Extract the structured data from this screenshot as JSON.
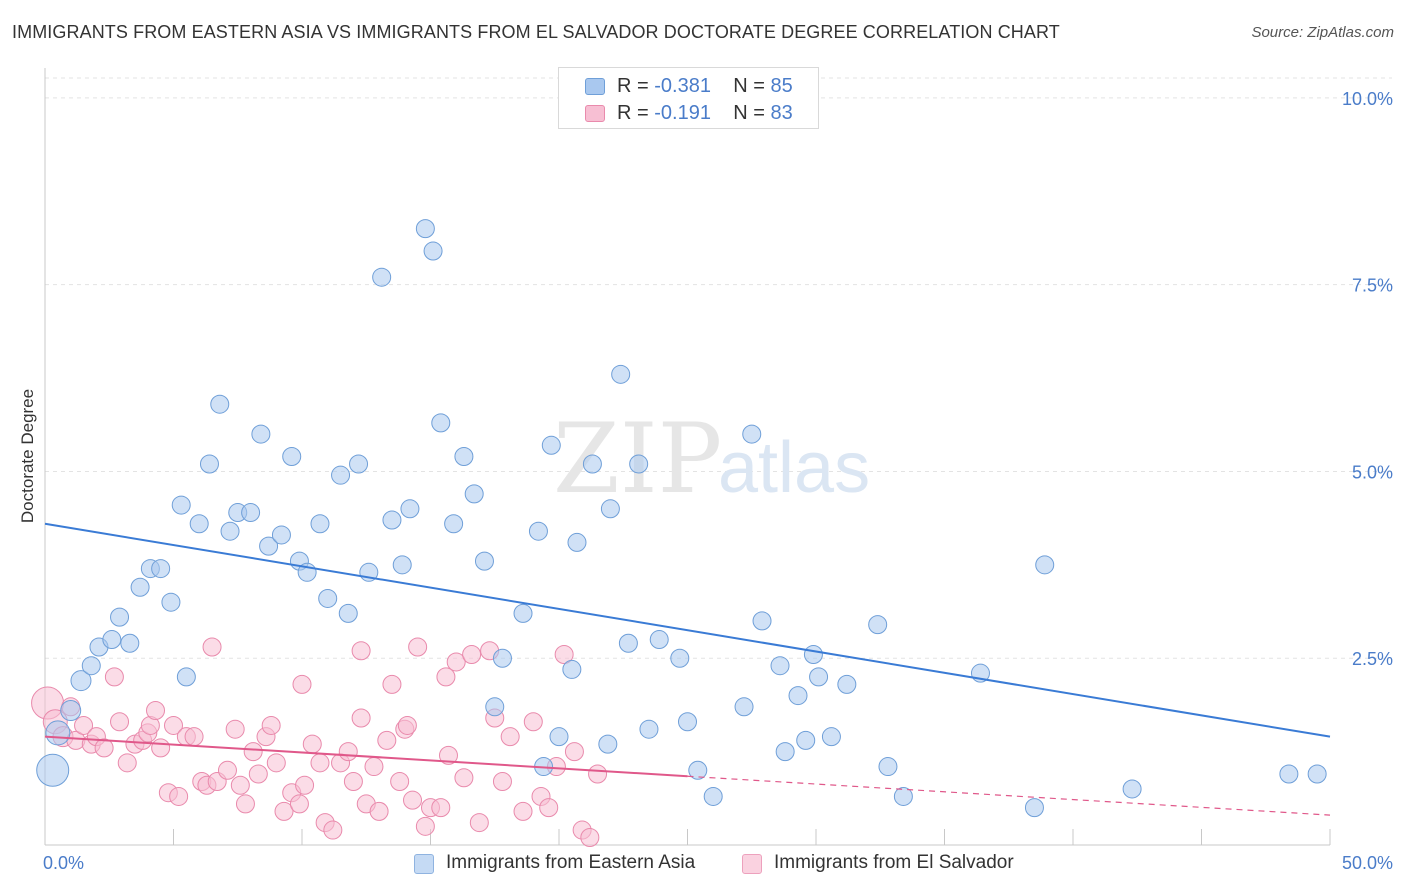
{
  "title": "IMMIGRANTS FROM EASTERN ASIA VS IMMIGRANTS FROM EL SALVADOR DOCTORATE DEGREE CORRELATION CHART",
  "source": "Source: ZipAtlas.com",
  "watermark": {
    "zip": "ZIP",
    "atlas": "atlas"
  },
  "legend": {
    "r_label": "R =",
    "n_label": "N =",
    "rows": [
      {
        "r": "-0.381",
        "n": "85"
      },
      {
        "r": "-0.191",
        "n": "83"
      }
    ]
  },
  "chart_data": {
    "type": "scatter",
    "title": "IMMIGRANTS FROM EASTERN ASIA VS IMMIGRANTS FROM EL SALVADOR DOCTORATE DEGREE CORRELATION CHART",
    "xlabel": "",
    "ylabel": "Doctorate Degree",
    "xlim": [
      0,
      50
    ],
    "ylim": [
      0,
      10.4
    ],
    "x_tick_labels": [
      "0.0%",
      "50.0%"
    ],
    "y_ticks": [
      2.5,
      5.0,
      7.5,
      10.0
    ],
    "y_tick_labels": [
      "2.5%",
      "5.0%",
      "7.5%",
      "10.0%"
    ],
    "grid": true,
    "legend_position": "bottom",
    "series": [
      {
        "name": "Immigrants from Eastern Asia",
        "color": "#a9c8ef",
        "stroke": "#6f9fd8",
        "trend": {
          "x": [
            0,
            50
          ],
          "y": [
            4.3,
            1.45
          ],
          "color": "#3a7bd5"
        },
        "points": [
          [
            0.3,
            1.0,
            16
          ],
          [
            0.5,
            1.5,
            12
          ],
          [
            1.0,
            1.8,
            10
          ],
          [
            1.4,
            2.2,
            10
          ],
          [
            1.8,
            2.4,
            9
          ],
          [
            2.1,
            2.65,
            9
          ],
          [
            2.6,
            2.75,
            9
          ],
          [
            2.9,
            3.05,
            9
          ],
          [
            3.3,
            2.7,
            9
          ],
          [
            3.7,
            3.45,
            9
          ],
          [
            4.1,
            3.7,
            9
          ],
          [
            4.5,
            3.7,
            9
          ],
          [
            4.9,
            3.25,
            9
          ],
          [
            5.3,
            4.55,
            9
          ],
          [
            5.5,
            2.25,
            9
          ],
          [
            6.0,
            4.3,
            9
          ],
          [
            6.4,
            5.1,
            9
          ],
          [
            6.8,
            5.9,
            9
          ],
          [
            7.2,
            4.2,
            9
          ],
          [
            7.5,
            4.45,
            9
          ],
          [
            8.0,
            4.45,
            9
          ],
          [
            8.4,
            5.5,
            9
          ],
          [
            8.7,
            4.0,
            9
          ],
          [
            9.2,
            4.15,
            9
          ],
          [
            9.6,
            5.2,
            9
          ],
          [
            9.9,
            3.8,
            9
          ],
          [
            10.2,
            3.65,
            9
          ],
          [
            10.7,
            4.3,
            9
          ],
          [
            11.0,
            3.3,
            9
          ],
          [
            11.5,
            4.95,
            9
          ],
          [
            11.8,
            3.1,
            9
          ],
          [
            12.2,
            5.1,
            9
          ],
          [
            12.6,
            3.65,
            9
          ],
          [
            13.1,
            7.6,
            9
          ],
          [
            13.5,
            4.35,
            9
          ],
          [
            13.9,
            3.75,
            9
          ],
          [
            14.2,
            4.5,
            9
          ],
          [
            14.8,
            8.25,
            9
          ],
          [
            15.1,
            7.95,
            9
          ],
          [
            15.4,
            5.65,
            9
          ],
          [
            15.9,
            4.3,
            9
          ],
          [
            16.3,
            5.2,
            9
          ],
          [
            16.7,
            4.7,
            9
          ],
          [
            17.1,
            3.8,
            9
          ],
          [
            17.5,
            1.85,
            9
          ],
          [
            17.8,
            2.5,
            9
          ],
          [
            18.6,
            3.1,
            9
          ],
          [
            19.2,
            4.2,
            9
          ],
          [
            19.4,
            1.05,
            9
          ],
          [
            19.7,
            5.35,
            9
          ],
          [
            20.0,
            1.45,
            9
          ],
          [
            20.5,
            2.35,
            9
          ],
          [
            20.7,
            4.05,
            9
          ],
          [
            21.3,
            5.1,
            9
          ],
          [
            21.9,
            1.35,
            9
          ],
          [
            22.0,
            4.5,
            9
          ],
          [
            22.4,
            6.3,
            9
          ],
          [
            22.7,
            2.7,
            9
          ],
          [
            23.1,
            5.1,
            9
          ],
          [
            23.5,
            1.55,
            9
          ],
          [
            23.9,
            2.75,
            9
          ],
          [
            24.7,
            2.5,
            9
          ],
          [
            25.0,
            1.65,
            9
          ],
          [
            25.4,
            1.0,
            9
          ],
          [
            26.0,
            0.65,
            9
          ],
          [
            27.2,
            1.85,
            9
          ],
          [
            27.5,
            5.5,
            9
          ],
          [
            27.9,
            3.0,
            9
          ],
          [
            28.6,
            2.4,
            9
          ],
          [
            28.8,
            1.25,
            9
          ],
          [
            29.3,
            2.0,
            9
          ],
          [
            29.6,
            1.4,
            9
          ],
          [
            29.9,
            2.55,
            9
          ],
          [
            30.1,
            2.25,
            9
          ],
          [
            30.6,
            1.45,
            9
          ],
          [
            31.2,
            2.15,
            9
          ],
          [
            32.4,
            2.95,
            9
          ],
          [
            32.8,
            1.05,
            9
          ],
          [
            33.4,
            0.65,
            9
          ],
          [
            36.4,
            2.3,
            9
          ],
          [
            38.5,
            0.5,
            9
          ],
          [
            38.9,
            3.75,
            9
          ],
          [
            42.3,
            0.75,
            9
          ],
          [
            48.4,
            0.95,
            9
          ],
          [
            49.5,
            0.95,
            9
          ]
        ]
      },
      {
        "name": "Immigrants from El Salvador",
        "color": "#f7bfd3",
        "stroke": "#e98aac",
        "trend": {
          "x": [
            0,
            25
          ],
          "y": [
            1.45,
            0.92
          ],
          "color": "#e0588a",
          "dash_to": [
            50,
            0.4
          ]
        },
        "points": [
          [
            0.1,
            1.9,
            16
          ],
          [
            0.4,
            1.65,
            12
          ],
          [
            0.7,
            1.45,
            10
          ],
          [
            1.0,
            1.85,
            9
          ],
          [
            1.2,
            1.4,
            9
          ],
          [
            1.5,
            1.6,
            9
          ],
          [
            1.8,
            1.35,
            9
          ],
          [
            2.0,
            1.45,
            9
          ],
          [
            2.3,
            1.3,
            9
          ],
          [
            2.7,
            2.25,
            9
          ],
          [
            2.9,
            1.65,
            9
          ],
          [
            3.2,
            1.1,
            9
          ],
          [
            3.5,
            1.35,
            9
          ],
          [
            3.8,
            1.4,
            9
          ],
          [
            4.0,
            1.5,
            9
          ],
          [
            4.1,
            1.6,
            9
          ],
          [
            4.3,
            1.8,
            9
          ],
          [
            4.5,
            1.3,
            9
          ],
          [
            4.8,
            0.7,
            9
          ],
          [
            5.0,
            1.6,
            9
          ],
          [
            5.2,
            0.65,
            9
          ],
          [
            5.5,
            1.45,
            9
          ],
          [
            5.8,
            1.45,
            9
          ],
          [
            6.1,
            0.85,
            9
          ],
          [
            6.3,
            0.8,
            9
          ],
          [
            6.5,
            2.65,
            9
          ],
          [
            6.7,
            0.85,
            9
          ],
          [
            7.1,
            1.0,
            9
          ],
          [
            7.4,
            1.55,
            9
          ],
          [
            7.6,
            0.8,
            9
          ],
          [
            7.8,
            0.55,
            9
          ],
          [
            8.1,
            1.25,
            9
          ],
          [
            8.3,
            0.95,
            9
          ],
          [
            8.6,
            1.45,
            9
          ],
          [
            8.8,
            1.6,
            9
          ],
          [
            9.0,
            1.1,
            9
          ],
          [
            9.3,
            0.45,
            9
          ],
          [
            9.6,
            0.7,
            9
          ],
          [
            9.9,
            0.55,
            9
          ],
          [
            10.1,
            0.8,
            9
          ],
          [
            10.4,
            1.35,
            9
          ],
          [
            10.7,
            1.1,
            9
          ],
          [
            10.9,
            0.3,
            9
          ],
          [
            11.2,
            0.2,
            9
          ],
          [
            11.5,
            1.1,
            9
          ],
          [
            11.8,
            1.25,
            9
          ],
          [
            12.0,
            0.85,
            9
          ],
          [
            12.3,
            2.6,
            9
          ],
          [
            12.5,
            0.55,
            9
          ],
          [
            12.8,
            1.05,
            9
          ],
          [
            13.0,
            0.45,
            9
          ],
          [
            13.3,
            1.4,
            9
          ],
          [
            13.5,
            2.15,
            9
          ],
          [
            13.8,
            0.85,
            9
          ],
          [
            14.0,
            1.55,
            9
          ],
          [
            14.3,
            0.6,
            9
          ],
          [
            14.5,
            2.65,
            9
          ],
          [
            14.8,
            0.25,
            9
          ],
          [
            15.0,
            0.5,
            9
          ],
          [
            15.4,
            0.5,
            9
          ],
          [
            15.7,
            1.2,
            9
          ],
          [
            16.0,
            2.45,
            9
          ],
          [
            16.3,
            0.9,
            9
          ],
          [
            16.6,
            2.55,
            9
          ],
          [
            16.9,
            0.3,
            9
          ],
          [
            17.3,
            2.6,
            9
          ],
          [
            17.5,
            1.7,
            9
          ],
          [
            17.8,
            0.85,
            9
          ],
          [
            18.1,
            1.45,
            9
          ],
          [
            18.6,
            0.45,
            9
          ],
          [
            19.0,
            1.65,
            9
          ],
          [
            19.3,
            0.65,
            9
          ],
          [
            19.6,
            0.5,
            9
          ],
          [
            19.9,
            1.05,
            9
          ],
          [
            20.2,
            2.55,
            9
          ],
          [
            20.6,
            1.25,
            9
          ],
          [
            20.9,
            0.2,
            9
          ],
          [
            21.2,
            0.1,
            9
          ],
          [
            21.5,
            0.95,
            9
          ],
          [
            12.3,
            1.7,
            9
          ],
          [
            10.0,
            2.15,
            9
          ],
          [
            14.1,
            1.6,
            9
          ],
          [
            15.6,
            2.25,
            9
          ]
        ]
      }
    ]
  }
}
